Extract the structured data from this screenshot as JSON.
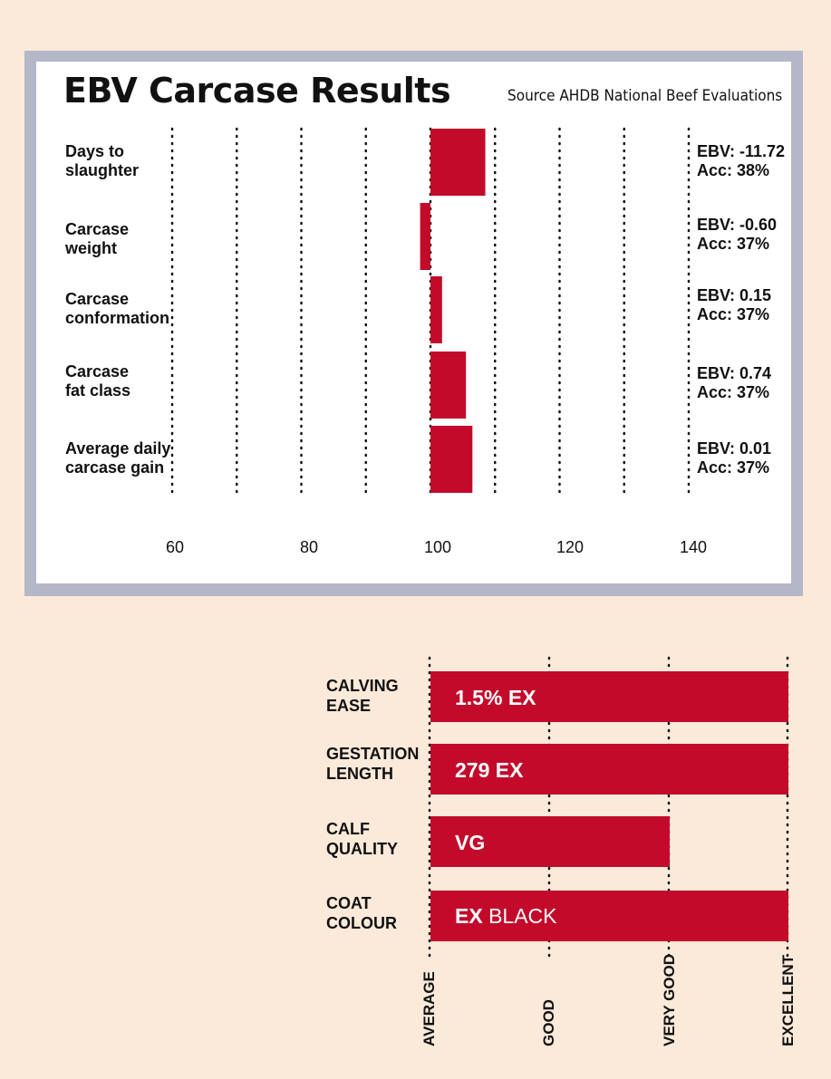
{
  "chart_data": [
    {
      "type": "bar",
      "title": "EBV Carcase Results",
      "subtitle": "Source AHDB National Beef Evaluations",
      "orientation": "horizontal",
      "baseline": 100,
      "xlim": [
        60,
        140
      ],
      "xticks": [
        "60",
        "80",
        "100",
        "120",
        "140"
      ],
      "categories": [
        {
          "label": [
            "Days to",
            "slaughter"
          ],
          "value": 108.5,
          "ebv": "EBV: -11.72",
          "acc": "Acc: 38%"
        },
        {
          "label": [
            "Carcase",
            "weight"
          ],
          "value": 98.4,
          "ebv": "EBV: -0.60",
          "acc": "Acc: 37%"
        },
        {
          "label": [
            "Carcase",
            "conformation"
          ],
          "value": 101.8,
          "ebv": "EBV: 0.15",
          "acc": "Acc: 37%"
        },
        {
          "label": [
            "Carcase",
            "fat class"
          ],
          "value": 105.5,
          "ebv": "EBV: 0.74",
          "acc": "Acc: 37%"
        },
        {
          "label": [
            "Average daily",
            "carcase gain"
          ],
          "value": 106.5,
          "ebv": "EBV: 0.01",
          "acc": "Acc: 37%"
        }
      ],
      "bar_color": "#c30a2b",
      "grid": "dotted vertical"
    },
    {
      "type": "bar",
      "orientation": "horizontal",
      "scale_categories": [
        "AVERAGE",
        "GOOD",
        "VERY GOOD",
        "EXCELLENT"
      ],
      "rows": [
        {
          "label": [
            "CALVING",
            "EASE"
          ],
          "value": "EXCELLENT",
          "text": "1.5% EX",
          "sub": ""
        },
        {
          "label": [
            "GESTATION",
            "LENGTH"
          ],
          "value": "EXCELLENT",
          "text": "279 EX",
          "sub": ""
        },
        {
          "label": [
            "CALF",
            "QUALITY"
          ],
          "value": "VERY GOOD",
          "text": "VG",
          "sub": ""
        },
        {
          "label": [
            "COAT",
            "COLOUR"
          ],
          "value": "EXCELLENT",
          "text": "EX",
          "sub": "BLACK"
        }
      ],
      "bar_color": "#c30a2b"
    }
  ]
}
